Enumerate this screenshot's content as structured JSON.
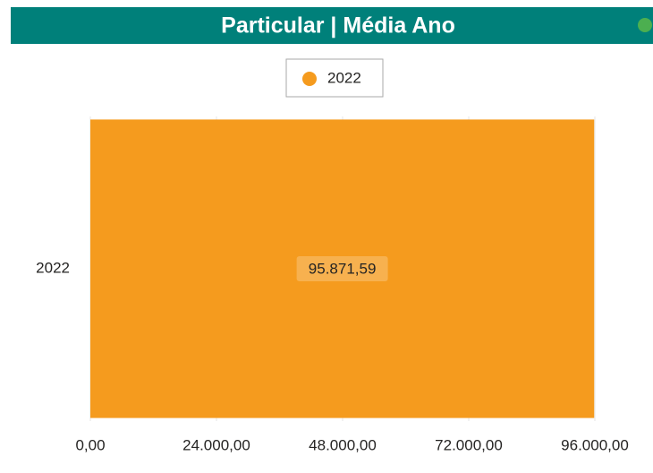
{
  "chart_data": {
    "type": "bar",
    "orientation": "horizontal",
    "title": "Particular | Média Ano",
    "categories": [
      "2022"
    ],
    "series": [
      {
        "name": "2022",
        "color": "#f59b1e",
        "values": [
          95871.59
        ],
        "value_labels": [
          "95.871,59"
        ]
      }
    ],
    "xlim": [
      0,
      96000
    ],
    "xticks": [
      {
        "value": 0,
        "label": "0,00"
      },
      {
        "value": 24000,
        "label": "24.000,00"
      },
      {
        "value": 48000,
        "label": "48.000,00"
      },
      {
        "value": 72000,
        "label": "72.000,00"
      },
      {
        "value": 96000,
        "label": "96.000,00"
      }
    ],
    "grid": true,
    "legend": "top"
  }
}
